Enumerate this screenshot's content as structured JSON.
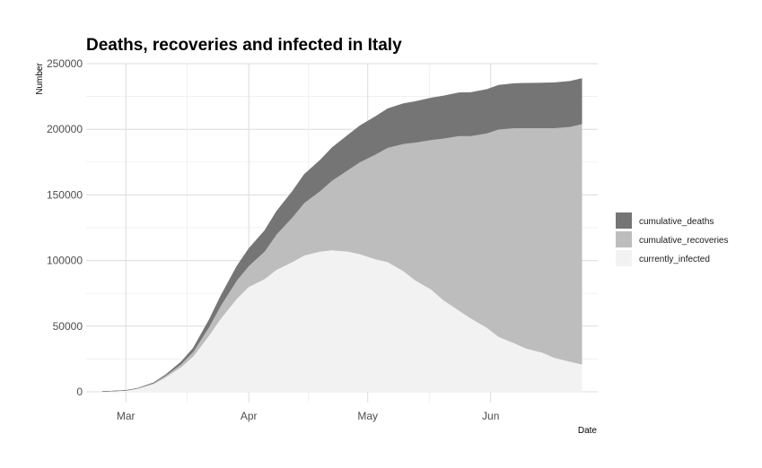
{
  "chart_data": {
    "type": "area",
    "stacked": true,
    "title": "Deaths, recoveries and infected in Italy",
    "xlabel": "Date",
    "ylabel": "Number",
    "ylim": [
      0,
      250000
    ],
    "y_ticks": [
      0,
      50000,
      100000,
      150000,
      200000,
      250000
    ],
    "y_tick_labels": [
      "0",
      "50000",
      "100000",
      "150000",
      "200000",
      "250000"
    ],
    "x_ticks": [
      "2020-03-01",
      "2020-04-01",
      "2020-05-01",
      "2020-06-01"
    ],
    "x_tick_labels": [
      "Mar",
      "Apr",
      "May",
      "Jun"
    ],
    "xlim": [
      "2020-02-20",
      "2020-06-28"
    ],
    "grid": true,
    "legend_position": "right",
    "x": [
      "2020-02-24",
      "2020-03-01",
      "2020-03-04",
      "2020-03-08",
      "2020-03-11",
      "2020-03-15",
      "2020-03-18",
      "2020-03-22",
      "2020-03-25",
      "2020-03-29",
      "2020-04-01",
      "2020-04-05",
      "2020-04-08",
      "2020-04-12",
      "2020-04-15",
      "2020-04-19",
      "2020-04-22",
      "2020-04-26",
      "2020-04-29",
      "2020-05-03",
      "2020-05-06",
      "2020-05-10",
      "2020-05-13",
      "2020-05-17",
      "2020-05-20",
      "2020-05-24",
      "2020-05-27",
      "2020-05-31",
      "2020-06-03",
      "2020-06-07",
      "2020-06-10",
      "2020-06-14",
      "2020-06-17",
      "2020-06-21",
      "2020-06-24"
    ],
    "series": [
      {
        "name": "currently_infected",
        "color": "#f2f2f2",
        "values": [
          200,
          1000,
          2500,
          6000,
          11000,
          19000,
          27000,
          43000,
          56000,
          71000,
          80000,
          86000,
          93000,
          99000,
          104000,
          107000,
          108000,
          107000,
          105000,
          101000,
          99000,
          92000,
          85000,
          78000,
          70000,
          62000,
          56000,
          49000,
          42000,
          37000,
          33000,
          30000,
          26000,
          23000,
          21000
        ]
      },
      {
        "name": "cumulative_recoveries",
        "color": "#bdbdbd",
        "values": [
          0,
          50,
          150,
          600,
          1200,
          2200,
          3500,
          6500,
          10000,
          14000,
          16000,
          21000,
          27000,
          34000,
          40000,
          46000,
          53000,
          62000,
          70000,
          80000,
          87000,
          97000,
          105000,
          114000,
          123000,
          133000,
          139000,
          148000,
          158000,
          164000,
          168000,
          171000,
          175000,
          179000,
          183000
        ]
      },
      {
        "name": "cumulative_deaths",
        "color": "#757575",
        "values": [
          0,
          30,
          100,
          350,
          800,
          1800,
          2900,
          5500,
          7500,
          10800,
          13200,
          15900,
          17600,
          19900,
          21700,
          23600,
          25100,
          26600,
          27700,
          28900,
          29700,
          30600,
          31200,
          31900,
          32400,
          32900,
          33100,
          33400,
          33600,
          33900,
          34100,
          34300,
          34500,
          34600,
          34700
        ]
      }
    ]
  }
}
